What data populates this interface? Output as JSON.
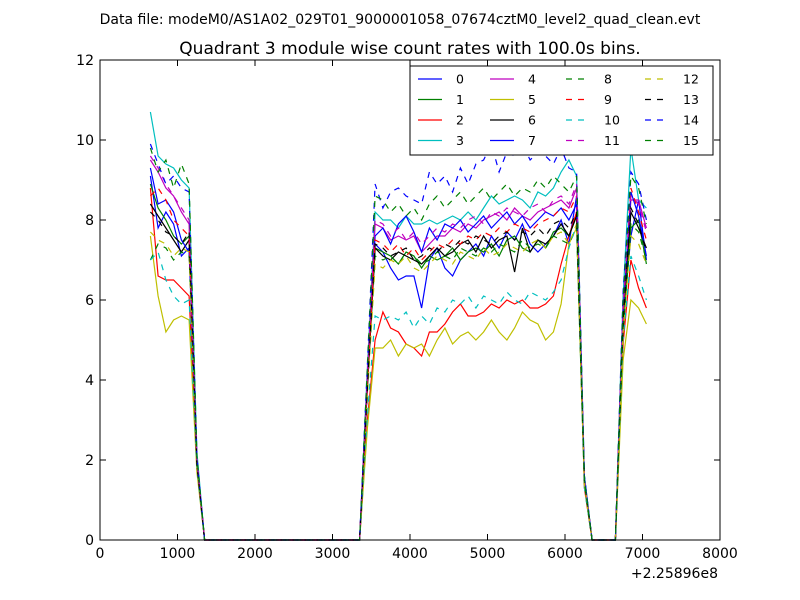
{
  "chart_data": {
    "type": "line",
    "suptitle": "Data file: modeM0/AS1A02_029T01_9000001058_07674cztM0_level2_quad_clean.evt",
    "title": "Quadrant 3 module wise count rates with 100.0s bins.",
    "xlabel": "",
    "ylabel": "",
    "x_offset_label": "+2.25896e8",
    "xlim": [
      0,
      8000
    ],
    "ylim": [
      0,
      12
    ],
    "xticks": [
      0,
      1000,
      2000,
      3000,
      4000,
      5000,
      6000,
      7000,
      8000
    ],
    "yticks": [
      0,
      2,
      4,
      6,
      8,
      10,
      12
    ],
    "xtick_labels": [
      "0",
      "1000",
      "2000",
      "3000",
      "4000",
      "5000",
      "6000",
      "7000",
      "8000"
    ],
    "ytick_labels": [
      "0",
      "2",
      "4",
      "6",
      "8",
      "10",
      "12"
    ],
    "grid": false,
    "legend_position": "top-right",
    "legend_columns": 4,
    "x": [
      650,
      750,
      850,
      950,
      1050,
      1150,
      1250,
      1350,
      1450,
      1550,
      1650,
      1750,
      1850,
      1950,
      2050,
      2150,
      2250,
      2350,
      2450,
      2550,
      2650,
      2750,
      2850,
      2950,
      3050,
      3150,
      3250,
      3350,
      3450,
      3550,
      3650,
      3750,
      3850,
      3950,
      4050,
      4150,
      4250,
      4350,
      4450,
      4550,
      4650,
      4750,
      4850,
      4950,
      5050,
      5150,
      5250,
      5350,
      5450,
      5550,
      5650,
      5750,
      5850,
      5950,
      6050,
      6150,
      6250,
      6350,
      6450,
      6550,
      6650,
      6750,
      6850,
      6950,
      7050
    ],
    "series": [
      {
        "name": "0",
        "color": "#0000ff",
        "dash": false,
        "values": [
          9.1,
          7.8,
          8.2,
          7.9,
          7.1,
          7.3,
          2.0,
          0.0,
          0,
          0,
          0,
          0,
          0,
          0,
          0,
          0,
          0,
          0,
          0,
          0,
          0,
          0,
          0,
          0,
          0,
          0,
          0,
          0.0,
          4.0,
          7.4,
          7.2,
          6.8,
          6.5,
          6.6,
          6.6,
          5.8,
          7.0,
          7.3,
          6.8,
          6.6,
          7.0,
          7.2,
          7.4,
          7.1,
          7.6,
          7.3,
          7.7,
          7.5,
          7.9,
          7.4,
          7.2,
          7.4,
          7.6,
          8.0,
          7.4,
          8.6,
          1.5,
          0.0,
          0.0,
          0.0,
          0.0,
          5.5,
          7.6,
          8.5,
          7.0
        ]
      },
      {
        "name": "1",
        "color": "#008000",
        "dash": false,
        "values": [
          8.9,
          8.3,
          8.0,
          7.6,
          7.4,
          7.6,
          2.0,
          0.0,
          0,
          0,
          0,
          0,
          0,
          0,
          0,
          0,
          0,
          0,
          0,
          0,
          0,
          0,
          0,
          0,
          0,
          0,
          0,
          0.0,
          3.9,
          7.3,
          7.2,
          7.1,
          6.9,
          7.2,
          7.1,
          6.8,
          7.1,
          7.0,
          7.1,
          7.3,
          7.0,
          7.2,
          7.3,
          7.2,
          7.4,
          7.1,
          7.5,
          7.6,
          7.3,
          7.2,
          7.5,
          7.3,
          7.7,
          7.8,
          7.6,
          8.1,
          1.6,
          0.0,
          0.0,
          0.0,
          0.0,
          5.2,
          7.8,
          8.0,
          6.9
        ]
      },
      {
        "name": "2",
        "color": "#ff0000",
        "dash": false,
        "values": [
          8.8,
          6.6,
          6.5,
          6.5,
          6.3,
          6.1,
          1.9,
          0.0,
          0,
          0,
          0,
          0,
          0,
          0,
          0,
          0,
          0,
          0,
          0,
          0,
          0,
          0,
          0,
          0,
          0,
          0,
          0,
          0.0,
          3.0,
          5.0,
          5.7,
          5.3,
          5.2,
          4.9,
          4.8,
          4.6,
          5.2,
          5.2,
          5.4,
          5.7,
          5.9,
          5.6,
          5.6,
          5.7,
          5.9,
          5.8,
          6.0,
          5.9,
          6.0,
          5.8,
          5.8,
          5.9,
          6.1,
          6.9,
          7.6,
          8.2,
          1.3,
          0.0,
          0.0,
          0.0,
          0.0,
          4.9,
          7.0,
          6.3,
          5.8
        ]
      },
      {
        "name": "3",
        "color": "#00bfbf",
        "dash": false,
        "values": [
          10.7,
          9.6,
          9.4,
          9.3,
          9.0,
          8.8,
          2.2,
          0.0,
          0,
          0,
          0,
          0,
          0,
          0,
          0,
          0,
          0,
          0,
          0,
          0,
          0,
          0,
          0,
          0,
          0,
          0,
          0,
          0.0,
          4.3,
          8.2,
          8.0,
          8.0,
          7.8,
          8.1,
          7.9,
          7.9,
          8.0,
          7.9,
          8.0,
          8.1,
          8.0,
          8.2,
          8.0,
          8.3,
          8.6,
          8.4,
          8.5,
          8.6,
          8.5,
          8.3,
          8.7,
          8.6,
          8.8,
          9.2,
          9.5,
          9.1,
          1.6,
          0.0,
          0.0,
          0.0,
          0.0,
          6.1,
          9.8,
          8.5,
          8.3
        ]
      },
      {
        "name": "4",
        "color": "#bf00bf",
        "dash": false,
        "values": [
          9.5,
          9.2,
          8.8,
          8.6,
          8.2,
          7.9,
          2.0,
          0.0,
          0,
          0,
          0,
          0,
          0,
          0,
          0,
          0,
          0,
          0,
          0,
          0,
          0,
          0,
          0,
          0,
          0,
          0,
          0,
          0.0,
          4.0,
          7.9,
          7.8,
          7.5,
          7.6,
          7.5,
          7.6,
          7.2,
          7.4,
          7.6,
          7.6,
          7.8,
          7.7,
          7.9,
          7.8,
          8.0,
          8.1,
          8.2,
          8.0,
          8.3,
          8.1,
          8.0,
          8.2,
          8.3,
          8.4,
          8.5,
          8.3,
          8.8,
          1.5,
          0.0,
          0.0,
          0.0,
          0.0,
          5.8,
          8.5,
          8.5,
          7.8
        ]
      },
      {
        "name": "5",
        "color": "#bfbf00",
        "dash": false,
        "values": [
          7.6,
          6.1,
          5.2,
          5.5,
          5.6,
          5.5,
          1.7,
          0.0,
          0,
          0,
          0,
          0,
          0,
          0,
          0,
          0,
          0,
          0,
          0,
          0,
          0,
          0,
          0,
          0,
          0,
          0,
          0,
          0.0,
          2.8,
          4.8,
          4.8,
          5.0,
          4.6,
          4.9,
          4.8,
          4.9,
          4.6,
          5.0,
          5.3,
          4.9,
          5.1,
          5.2,
          5.0,
          5.2,
          5.5,
          5.2,
          5.0,
          5.3,
          5.7,
          5.5,
          5.4,
          5.0,
          5.2,
          5.9,
          7.4,
          7.8,
          1.4,
          0.0,
          0.0,
          0.0,
          0.0,
          4.5,
          6.0,
          5.8,
          5.4
        ]
      },
      {
        "name": "6",
        "color": "#000000",
        "dash": false,
        "values": [
          8.4,
          8.1,
          7.8,
          7.5,
          7.2,
          7.5,
          1.9,
          0.0,
          0,
          0,
          0,
          0,
          0,
          0,
          0,
          0,
          0,
          0,
          0,
          0,
          0,
          0,
          0,
          0,
          0,
          0,
          0,
          0.0,
          3.8,
          7.3,
          7.1,
          7.0,
          7.2,
          7.1,
          7.0,
          6.9,
          7.1,
          7.3,
          7.1,
          7.2,
          7.4,
          7.5,
          7.2,
          7.6,
          7.3,
          7.5,
          7.6,
          6.7,
          7.8,
          7.2,
          7.5,
          7.4,
          7.6,
          7.9,
          7.6,
          8.1,
          1.5,
          0.0,
          0.0,
          0.0,
          0.0,
          5.4,
          8.2,
          7.8,
          7.3
        ]
      },
      {
        "name": "7",
        "color": "#0000ff",
        "dash": false,
        "values": [
          9.3,
          8.4,
          8.5,
          8.2,
          7.5,
          7.2,
          2.0,
          0.0,
          0,
          0,
          0,
          0,
          0,
          0,
          0,
          0,
          0,
          0,
          0,
          0,
          0,
          0,
          0,
          0,
          0,
          0,
          0,
          0.0,
          4.1,
          7.6,
          7.8,
          7.4,
          7.9,
          8.1,
          7.7,
          7.2,
          7.8,
          7.5,
          7.9,
          7.8,
          8.0,
          7.7,
          7.9,
          8.1,
          7.8,
          8.0,
          8.2,
          7.9,
          8.1,
          7.8,
          8.0,
          8.2,
          8.1,
          8.3,
          8.0,
          8.4,
          1.5,
          0.0,
          0.0,
          0.0,
          0.0,
          5.6,
          8.7,
          8.1,
          7.1
        ]
      },
      {
        "name": "8",
        "color": "#008000",
        "dash": true,
        "values": [
          7.0,
          7.4,
          7.3,
          7.0,
          7.2,
          7.1,
          1.9,
          0.0,
          0,
          0,
          0,
          0,
          0,
          0,
          0,
          0,
          0,
          0,
          0,
          0,
          0,
          0,
          0,
          0,
          0,
          0,
          0,
          0.0,
          3.7,
          7.1,
          7.0,
          7.1,
          6.9,
          7.2,
          7.1,
          6.9,
          7.0,
          7.2,
          7.1,
          7.0,
          7.3,
          7.2,
          7.1,
          7.3,
          7.2,
          7.4,
          7.3,
          7.2,
          7.5,
          7.3,
          7.4,
          7.3,
          7.6,
          7.5,
          7.4,
          7.8,
          1.4,
          0.0,
          0.0,
          0.0,
          0.0,
          5.3,
          7.9,
          7.7,
          7.0
        ]
      },
      {
        "name": "9",
        "color": "#ff0000",
        "dash": true,
        "values": [
          8.6,
          8.8,
          8.5,
          8.0,
          7.8,
          7.6,
          2.0,
          0.0,
          0,
          0,
          0,
          0,
          0,
          0,
          0,
          0,
          0,
          0,
          0,
          0,
          0,
          0,
          0,
          0,
          0,
          0,
          0,
          0.0,
          3.9,
          7.5,
          7.4,
          7.2,
          7.4,
          7.1,
          7.3,
          7.0,
          7.2,
          7.4,
          7.3,
          7.5,
          7.4,
          7.6,
          7.5,
          7.7,
          7.6,
          7.8,
          7.7,
          7.9,
          7.8,
          7.7,
          7.9,
          8.0,
          8.1,
          8.3,
          8.2,
          8.6,
          1.5,
          0.0,
          0.0,
          0.0,
          0.0,
          5.7,
          8.8,
          8.2,
          7.5
        ]
      },
      {
        "name": "10",
        "color": "#00bfbf",
        "dash": true,
        "values": [
          7.0,
          7.2,
          6.5,
          6.1,
          5.9,
          6.0,
          1.8,
          0.0,
          0,
          0,
          0,
          0,
          0,
          0,
          0,
          0,
          0,
          0,
          0,
          0,
          0,
          0,
          0,
          0,
          0,
          0,
          0,
          0.0,
          3.1,
          5.6,
          5.5,
          5.6,
          5.5,
          5.7,
          5.3,
          5.6,
          5.4,
          5.8,
          5.7,
          6.0,
          5.9,
          6.1,
          5.8,
          6.1,
          6.0,
          5.9,
          6.2,
          6.0,
          5.9,
          6.2,
          6.1,
          6.0,
          6.2,
          6.5,
          7.3,
          7.9,
          1.3,
          0.0,
          0.0,
          0.0,
          0.0,
          5.0,
          7.1,
          6.6,
          6.0
        ]
      },
      {
        "name": "11",
        "color": "#bf00bf",
        "dash": true,
        "values": [
          9.6,
          9.3,
          8.9,
          8.6,
          8.3,
          8.0,
          2.0,
          0.0,
          0,
          0,
          0,
          0,
          0,
          0,
          0,
          0,
          0,
          0,
          0,
          0,
          0,
          0,
          0,
          0,
          0,
          0,
          0,
          0.0,
          4.1,
          8.0,
          7.9,
          7.6,
          7.8,
          7.5,
          7.7,
          7.4,
          7.6,
          7.8,
          7.7,
          7.9,
          7.8,
          8.0,
          8.1,
          7.9,
          8.2,
          8.1,
          8.3,
          8.2,
          8.1,
          8.3,
          8.4,
          8.2,
          8.5,
          8.6,
          8.4,
          8.9,
          1.5,
          0.0,
          0.0,
          0.0,
          0.0,
          5.9,
          8.6,
          8.4,
          7.7
        ]
      },
      {
        "name": "12",
        "color": "#bfbf00",
        "dash": true,
        "values": [
          7.7,
          7.5,
          7.4,
          7.1,
          7.3,
          7.2,
          1.9,
          0.0,
          0,
          0,
          0,
          0,
          0,
          0,
          0,
          0,
          0,
          0,
          0,
          0,
          0,
          0,
          0,
          0,
          0,
          0,
          0,
          0.0,
          3.6,
          6.9,
          6.8,
          7.0,
          6.9,
          7.1,
          6.8,
          6.7,
          6.9,
          7.1,
          7.0,
          6.9,
          7.2,
          7.1,
          7.0,
          7.3,
          7.1,
          7.2,
          7.4,
          7.3,
          7.2,
          7.4,
          7.5,
          7.3,
          7.6,
          7.7,
          7.4,
          7.9,
          1.4,
          0.0,
          0.0,
          0.0,
          0.0,
          5.2,
          7.6,
          7.4,
          6.9
        ]
      },
      {
        "name": "13",
        "color": "#000000",
        "dash": true,
        "values": [
          8.2,
          8.0,
          7.7,
          7.6,
          7.4,
          7.7,
          1.9,
          0.0,
          0,
          0,
          0,
          0,
          0,
          0,
          0,
          0,
          0,
          0,
          0,
          0,
          0,
          0,
          0,
          0,
          0,
          0,
          0,
          0.0,
          3.8,
          7.4,
          7.3,
          7.1,
          7.2,
          7.3,
          7.0,
          7.1,
          7.3,
          7.2,
          7.4,
          7.3,
          7.5,
          7.4,
          7.6,
          7.5,
          7.4,
          7.6,
          7.7,
          7.5,
          7.7,
          7.6,
          7.8,
          7.6,
          7.9,
          8.0,
          7.8,
          8.2,
          1.5,
          0.0,
          0.0,
          0.0,
          0.0,
          5.5,
          8.3,
          7.9,
          7.2
        ]
      },
      {
        "name": "14",
        "color": "#0000ff",
        "dash": true,
        "values": [
          9.9,
          9.4,
          8.9,
          9.1,
          8.8,
          8.7,
          2.1,
          0.0,
          0,
          0,
          0,
          0,
          0,
          0,
          0,
          0,
          0,
          0,
          0,
          0,
          0,
          0,
          0,
          0,
          0,
          0,
          0,
          0.0,
          4.4,
          8.9,
          8.3,
          8.7,
          8.8,
          8.6,
          8.5,
          8.4,
          9.2,
          8.9,
          9.1,
          8.7,
          9.3,
          8.9,
          9.4,
          9.5,
          9.9,
          9.2,
          9.7,
          9.6,
          9.9,
          9.5,
          9.7,
          9.6,
          9.4,
          9.8,
          9.3,
          9.2,
          1.6,
          0.0,
          0.0,
          0.0,
          0.0,
          6.2,
          9.2,
          8.9,
          8.0
        ]
      },
      {
        "name": "15",
        "color": "#008000",
        "dash": true,
        "values": [
          9.8,
          9.2,
          9.5,
          8.8,
          9.4,
          8.9,
          2.1,
          0.0,
          0,
          0,
          0,
          0,
          0,
          0,
          0,
          0,
          0,
          0,
          0,
          0,
          0,
          0,
          0,
          0,
          0,
          0,
          0,
          0.0,
          4.3,
          8.6,
          8.5,
          8.2,
          8.4,
          8.1,
          8.3,
          8.0,
          8.4,
          8.6,
          8.3,
          8.5,
          8.7,
          8.4,
          8.6,
          8.8,
          8.5,
          8.7,
          8.9,
          8.6,
          8.8,
          8.7,
          9.0,
          8.8,
          9.1,
          8.9,
          8.7,
          9.1,
          1.5,
          0.0,
          0.0,
          0.0,
          0.0,
          6.0,
          9.1,
          8.8,
          7.9
        ]
      }
    ]
  }
}
